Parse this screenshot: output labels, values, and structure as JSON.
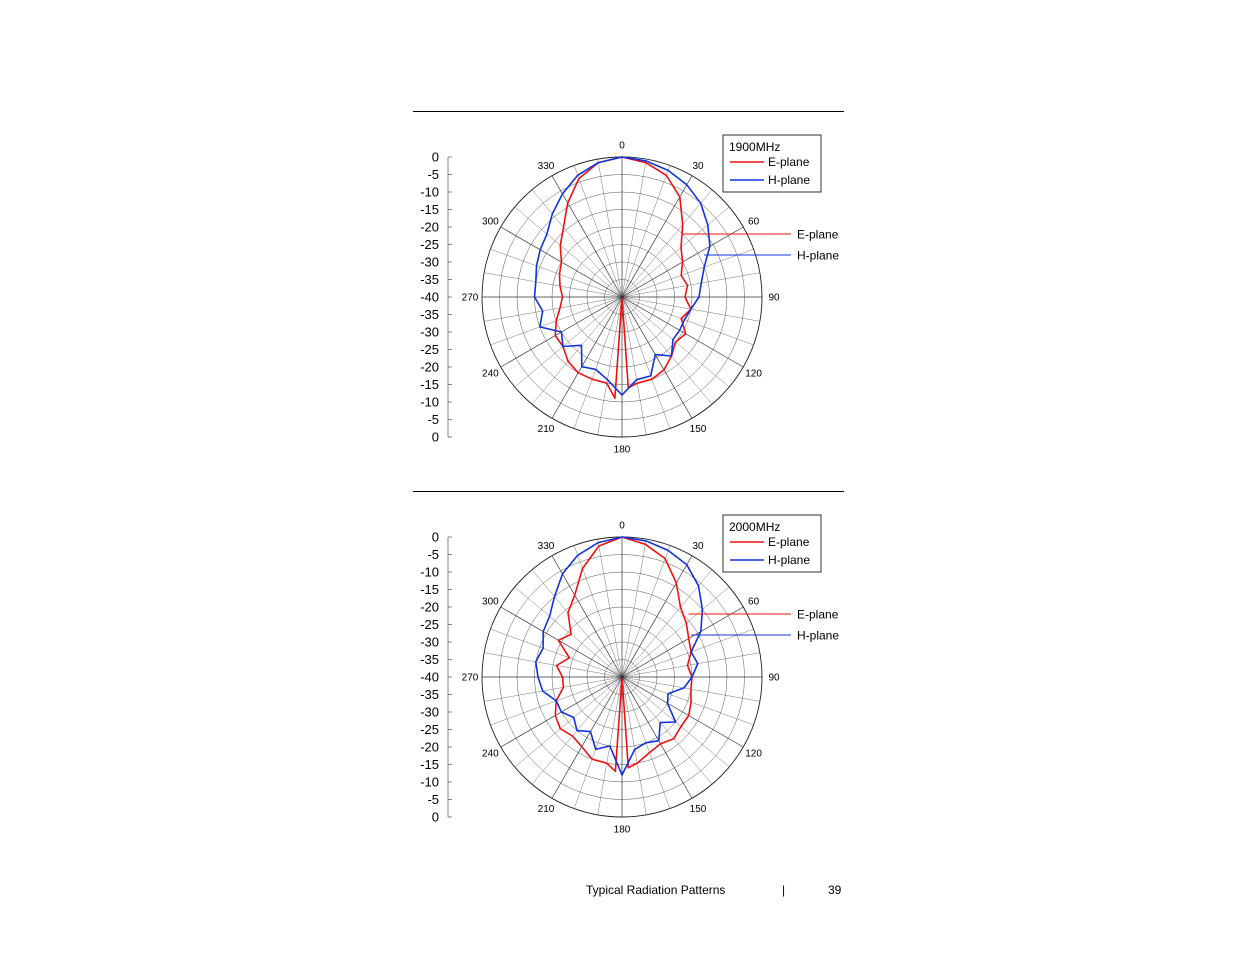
{
  "footer": {
    "section": "Typical Radiation Patterns",
    "separator": "|",
    "page": "39"
  },
  "colors": {
    "e_plane": "#ee1111",
    "h_plane": "#1133dd",
    "grid": "#555555"
  },
  "chart_data": [
    {
      "type": "line",
      "projection": "polar",
      "title": "1900MHz",
      "angle_labels": [
        "0",
        "30",
        "60",
        "90",
        "120",
        "150",
        "180",
        "210",
        "240",
        "270",
        "300",
        "330"
      ],
      "radial_range": [
        -40,
        0
      ],
      "radial_tick_labels": [
        "0",
        "-5",
        "-10",
        "-15",
        "-20",
        "-25",
        "-30",
        "-35",
        "-40",
        "-35",
        "-30",
        "-25",
        "-20",
        "-15",
        "-10",
        "-5",
        "0"
      ],
      "legend": [
        "E-plane",
        "H-plane"
      ],
      "annotations": [
        "E-plane",
        "H-plane"
      ],
      "series": [
        {
          "name": "E-plane",
          "angles_deg": [
            0,
            10,
            20,
            30,
            40,
            50,
            60,
            70,
            80,
            90,
            100,
            110,
            120,
            130,
            140,
            150,
            160,
            170,
            176,
            180,
            184,
            190,
            200,
            210,
            220,
            230,
            240,
            250,
            260,
            270,
            280,
            290,
            300,
            310,
            320,
            330,
            340,
            350
          ],
          "values_db": [
            0,
            -1,
            -3,
            -7,
            -13,
            -18,
            -20,
            -22,
            -21,
            -22,
            -20,
            -22,
            -19,
            -20,
            -18,
            -16,
            -15,
            -15,
            -14,
            -40,
            -11,
            -15,
            -15,
            -15,
            -16,
            -18,
            -18,
            -20,
            -22,
            -23,
            -22,
            -21,
            -20,
            -17,
            -14,
            -9,
            -4,
            -1
          ]
        },
        {
          "name": "H-plane",
          "angles_deg": [
            0,
            10,
            20,
            30,
            40,
            50,
            60,
            70,
            80,
            90,
            100,
            110,
            120,
            130,
            140,
            150,
            160,
            170,
            180,
            190,
            200,
            210,
            220,
            230,
            240,
            250,
            260,
            270,
            280,
            290,
            300,
            310,
            320,
            330,
            340,
            350
          ],
          "values_db": [
            0,
            -0.5,
            -1.5,
            -3,
            -5,
            -8,
            -11,
            -15,
            -17,
            -18,
            -20,
            -21,
            -21,
            -21,
            -18,
            -21,
            -16,
            -16,
            -12,
            -16,
            -18,
            -17,
            -22,
            -18,
            -20,
            -15,
            -17,
            -15,
            -15,
            -14,
            -13,
            -12,
            -9,
            -6,
            -3,
            -1
          ]
        }
      ]
    },
    {
      "type": "line",
      "projection": "polar",
      "title": "2000MHz",
      "angle_labels": [
        "0",
        "30",
        "60",
        "90",
        "120",
        "150",
        "180",
        "210",
        "240",
        "270",
        "300",
        "330"
      ],
      "radial_range": [
        -40,
        0
      ],
      "radial_tick_labels": [
        "0",
        "-5",
        "-10",
        "-15",
        "-20",
        "-25",
        "-30",
        "-35",
        "-40",
        "-35",
        "-30",
        "-25",
        "-20",
        "-15",
        "-10",
        "-5",
        "0"
      ],
      "legend": [
        "E-plane",
        "H-plane"
      ],
      "annotations": [
        "E-plane",
        "H-plane"
      ],
      "series": [
        {
          "name": "E-plane",
          "angles_deg": [
            0,
            10,
            20,
            30,
            40,
            50,
            60,
            70,
            80,
            90,
            100,
            110,
            120,
            130,
            140,
            150,
            160,
            170,
            176,
            180,
            184,
            190,
            200,
            210,
            220,
            230,
            240,
            250,
            260,
            270,
            280,
            290,
            300,
            310,
            320,
            330,
            340,
            350
          ],
          "values_db": [
            0,
            -1.5,
            -4,
            -9,
            -14,
            -16,
            -18,
            -19,
            -21,
            -20,
            -20,
            -19,
            -18,
            -18,
            -17,
            -18,
            -17,
            -15,
            -14,
            -40,
            -13,
            -15,
            -15,
            -17,
            -18,
            -17,
            -18,
            -20,
            -23,
            -23,
            -21,
            -24,
            -19,
            -21,
            -16,
            -13,
            -7,
            -2
          ]
        },
        {
          "name": "H-plane",
          "angles_deg": [
            0,
            10,
            20,
            30,
            40,
            50,
            60,
            70,
            80,
            90,
            100,
            110,
            120,
            130,
            140,
            150,
            160,
            170,
            180,
            190,
            200,
            210,
            220,
            230,
            240,
            250,
            260,
            270,
            280,
            290,
            300,
            310,
            320,
            330,
            340,
            350
          ],
          "values_db": [
            0,
            -0.5,
            -1.5,
            -3,
            -6,
            -10,
            -14,
            -19,
            -18,
            -20,
            -22,
            -26,
            -25,
            -20,
            -23,
            -19,
            -20,
            -19,
            -12,
            -20,
            -18,
            -22,
            -20,
            -22,
            -20,
            -20,
            -17,
            -16,
            -15,
            -16,
            -14,
            -13,
            -10,
            -6,
            -3,
            -1
          ]
        }
      ]
    }
  ]
}
